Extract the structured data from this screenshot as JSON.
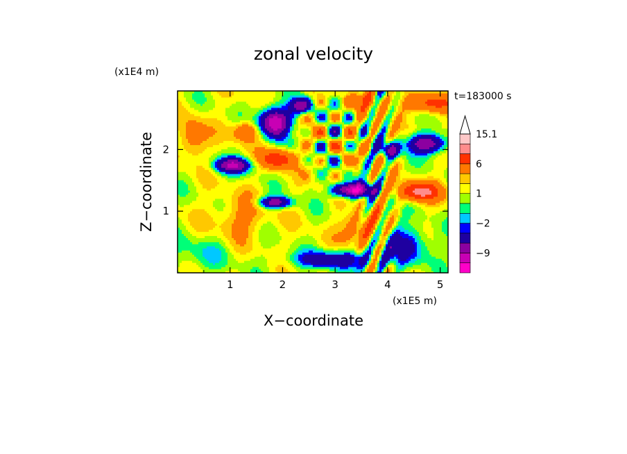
{
  "chart_data": {
    "type": "heatmap",
    "title": "zonal velocity",
    "xlabel": "X−coordinate",
    "ylabel": "Z−coordinate",
    "x_unit": "(x1E5 m)",
    "y_unit": "(x1E4 m)",
    "time_label": "t=183000 s",
    "xlim": [
      0,
      5.15
    ],
    "ylim": [
      0,
      2.95
    ],
    "x_ticks": [
      "1",
      "2",
      "3",
      "4",
      "5"
    ],
    "x_tick_values": [
      1,
      2,
      3,
      4,
      5
    ],
    "y_ticks": [
      "1",
      "2"
    ],
    "y_tick_values": [
      1,
      2
    ],
    "colorbar": {
      "levels": [
        -15,
        -12,
        -9,
        -6,
        -3,
        -2,
        -1,
        0,
        1,
        2,
        3,
        6,
        9,
        12,
        15.1
      ],
      "colors": [
        "#ff00c8",
        "#c800b4",
        "#8c00a0",
        "#1e00a0",
        "#0000ff",
        "#00c8ff",
        "#00ff78",
        "#a0ff00",
        "#ffff00",
        "#ffc800",
        "#ff7800",
        "#ff3200",
        "#ff8c8c",
        "#ffc8c8"
      ],
      "tick_labels": [
        "15.1",
        "6",
        "1",
        "−2",
        "−9"
      ],
      "tick_values": [
        15.1,
        6,
        1,
        -2,
        -9
      ],
      "extend": "max"
    }
  }
}
